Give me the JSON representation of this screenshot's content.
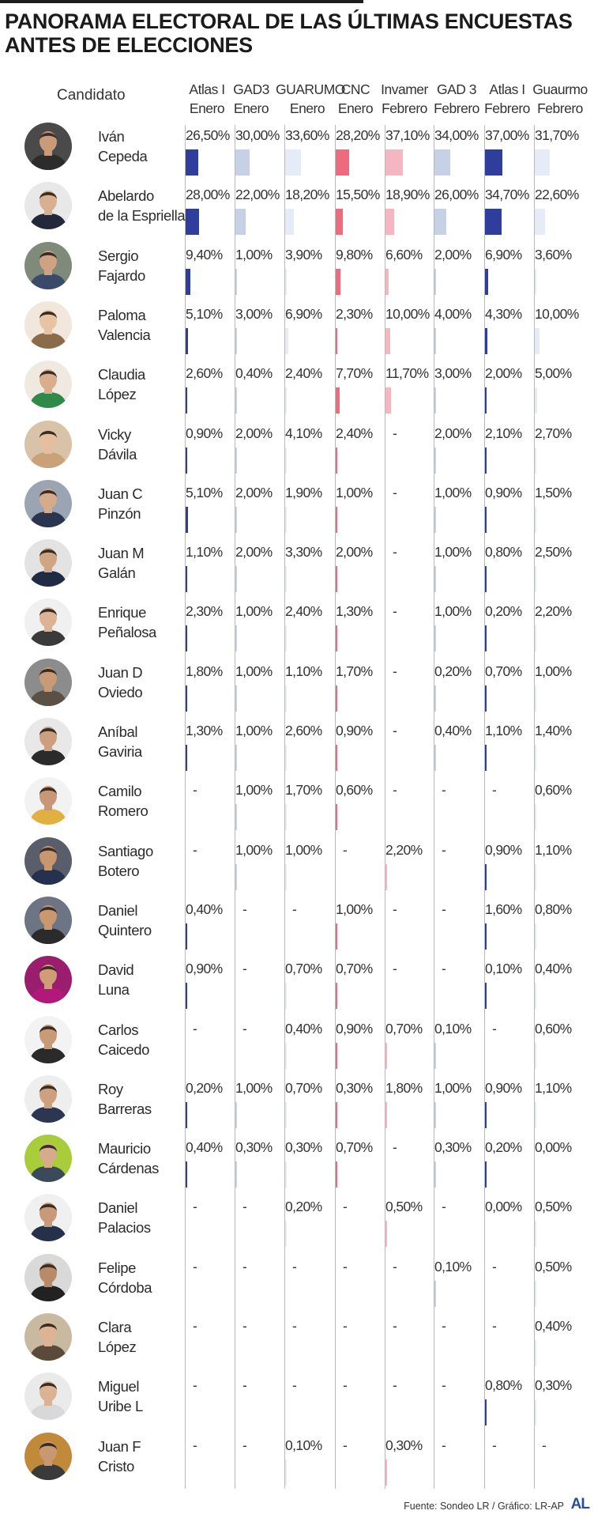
{
  "title_line1": "PANORAMA ELECTORAL DE LAS ÚLTIMAS ENCUESTAS",
  "title_line2": "ANTES DE ELECCIONES",
  "candidate_header": "Candidato",
  "source": "Fuente: Sondeo LR / Gráfico: LR-AP",
  "logo": "AL",
  "colors": {
    "blue_dark": "#2f3d9c",
    "blue_light": "#c7d1e6",
    "blue_pale": "#e6ecf7",
    "red_strong": "#ef6a7c",
    "red_light": "#f4b6c0",
    "grey_line": "#b9b9b9"
  },
  "columns": [
    {
      "pollster": "Atlas I",
      "month": "Enero",
      "color": "#2f3d9c"
    },
    {
      "pollster": "GAD3",
      "month": "Enero",
      "color": "#c7d1e6"
    },
    {
      "pollster": "GUARUMO",
      "month": "Enero",
      "color": "#e6ecf7"
    },
    {
      "pollster": "CNC",
      "month": "Enero",
      "color": "#ef6a7c"
    },
    {
      "pollster": "Invamer",
      "month": "Febrero",
      "color": "#f4b6c0"
    },
    {
      "pollster": "GAD 3",
      "month": "Febrero",
      "color": "#c7d1e6"
    },
    {
      "pollster": "Atlas I",
      "month": "Febrero",
      "color": "#2f3d9c"
    },
    {
      "pollster": "Guaurmo",
      "month": "Febrero",
      "color": "#e6ecf7"
    }
  ],
  "chart_data": {
    "type": "table",
    "columns": [
      "Atlas I Enero",
      "GAD3 Enero",
      "GUARUMO Enero",
      "CNC Enero",
      "Invamer Febrero",
      "GAD 3 Febrero",
      "Atlas I Febrero",
      "Guaurmo Febrero"
    ],
    "rows": [
      {
        "first": "Iván",
        "last": "Cepeda",
        "skin": "#c99b7a",
        "shirt": "#2c2c2c",
        "bg": "#4a4a4a",
        "labels": [
          "26,50%",
          "30,00%",
          "33,60%",
          "28,20%",
          "37,10%",
          "34,00%",
          "37,00%",
          "31,70%"
        ],
        "values": [
          26.5,
          30.0,
          33.6,
          28.2,
          37.1,
          34.0,
          37.0,
          31.7
        ]
      },
      {
        "first": "Abelardo",
        "last": "de la Espriella",
        "skin": "#d8b08e",
        "shirt": "#23283a",
        "bg": "#e8e8e8",
        "labels": [
          "28,00%",
          "22,00%",
          "18,20%",
          "15,50%",
          "18,90%",
          "26,00%",
          "34,70%",
          "22,60%"
        ],
        "values": [
          28.0,
          22.0,
          18.2,
          15.5,
          18.9,
          26.0,
          34.7,
          22.6
        ]
      },
      {
        "first": "Sergio",
        "last": "Fajardo",
        "skin": "#cfa283",
        "shirt": "#3b4a6b",
        "bg": "#7f8a7a",
        "labels": [
          "9,40%",
          "1,00%",
          "3,90%",
          "9,80%",
          "6,60%",
          "2,00%",
          "6,90%",
          "3,60%"
        ],
        "values": [
          9.4,
          1.0,
          3.9,
          9.8,
          6.6,
          2.0,
          6.9,
          3.6
        ]
      },
      {
        "first": "Paloma",
        "last": "Valencia",
        "skin": "#e7c3a3",
        "shirt": "#8a6b4a",
        "bg": "#f1e7dc",
        "labels": [
          "5,10%",
          "3,00%",
          "6,90%",
          "2,30%",
          "10,00%",
          "4,00%",
          "4,30%",
          "10,00%"
        ],
        "values": [
          5.1,
          3.0,
          6.9,
          2.3,
          10.0,
          4.0,
          4.3,
          10.0
        ]
      },
      {
        "first": "Claudia",
        "last": "López",
        "skin": "#d9ad8d",
        "shirt": "#2f8a4a",
        "bg": "#efe9e2",
        "labels": [
          "2,60%",
          "0,40%",
          "2,40%",
          "7,70%",
          "11,70%",
          "3,00%",
          "2,00%",
          "5,00%"
        ],
        "values": [
          2.6,
          0.4,
          2.4,
          7.7,
          11.7,
          3.0,
          2.0,
          5.0
        ]
      },
      {
        "first": "Vicky",
        "last": "Dávila",
        "skin": "#e4bf9f",
        "shirt": "#c9a27a",
        "bg": "#d8c2a8",
        "labels": [
          "0,90%",
          "2,00%",
          "4,10%",
          "2,40%",
          "-",
          "2,00%",
          "2,10%",
          "2,70%"
        ],
        "values": [
          0.9,
          2.0,
          4.1,
          2.4,
          null,
          2.0,
          2.1,
          2.7
        ]
      },
      {
        "first": "Juan C",
        "last": "Pinzón",
        "skin": "#d6ab8b",
        "shirt": "#2a3550",
        "bg": "#9aa4b2",
        "labels": [
          "5,10%",
          "2,00%",
          "1,90%",
          "1,00%",
          "-",
          "1,00%",
          "0,90%",
          "1,50%"
        ],
        "values": [
          5.1,
          2.0,
          1.9,
          1.0,
          null,
          1.0,
          0.9,
          1.5
        ]
      },
      {
        "first": "Juan M",
        "last": "Galán",
        "skin": "#d0a584",
        "shirt": "#1f2a44",
        "bg": "#e3e3e3",
        "labels": [
          "1,10%",
          "2,00%",
          "3,30%",
          "2,00%",
          "-",
          "1,00%",
          "0,80%",
          "2,50%"
        ],
        "values": [
          1.1,
          2.0,
          3.3,
          2.0,
          null,
          1.0,
          0.8,
          2.5
        ]
      },
      {
        "first": "Enrique",
        "last": "Peñalosa",
        "skin": "#dcb394",
        "shirt": "#3a3a3a",
        "bg": "#f0f0f0",
        "labels": [
          "2,30%",
          "1,00%",
          "2,40%",
          "1,30%",
          "-",
          "1,00%",
          "0,20%",
          "2,20%"
        ],
        "values": [
          2.3,
          1.0,
          2.4,
          1.3,
          null,
          1.0,
          0.2,
          2.2
        ]
      },
      {
        "first": "Juan D",
        "last": "Oviedo",
        "skin": "#c89a78",
        "shirt": "#5a5046",
        "bg": "#8c8c8c",
        "labels": [
          "1,80%",
          "1,00%",
          "1,10%",
          "1,70%",
          "-",
          "0,20%",
          "0,70%",
          "1,00%"
        ],
        "values": [
          1.8,
          1.0,
          1.1,
          1.7,
          null,
          0.2,
          0.7,
          1.0
        ]
      },
      {
        "first": "Aníbal",
        "last": "Gaviria",
        "skin": "#cc9f80",
        "shirt": "#2b2b2b",
        "bg": "#e8e8e8",
        "labels": [
          "1,30%",
          "1,00%",
          "2,60%",
          "0,90%",
          "-",
          "0,40%",
          "1,10%",
          "1,40%"
        ],
        "values": [
          1.3,
          1.0,
          2.6,
          0.9,
          null,
          0.4,
          1.1,
          1.4
        ]
      },
      {
        "first": "Camilo",
        "last": "Romero",
        "skin": "#c89876",
        "shirt": "#e0b040",
        "bg": "#f2f2f2",
        "labels": [
          "-",
          "1,00%",
          "1,70%",
          "0,60%",
          "-",
          "-",
          "-",
          "0,60%"
        ],
        "values": [
          null,
          1.0,
          1.7,
          0.6,
          null,
          null,
          null,
          0.6
        ]
      },
      {
        "first": "Santiago",
        "last": "Botero",
        "skin": "#c8966f",
        "shirt": "#26314f",
        "bg": "#5a5e6a",
        "labels": [
          "-",
          "1,00%",
          "1,00%",
          "-",
          "2,20%",
          "-",
          "0,90%",
          "1,10%"
        ],
        "values": [
          null,
          1.0,
          1.0,
          null,
          2.2,
          null,
          0.9,
          1.1
        ]
      },
      {
        "first": "Daniel",
        "last": "Quintero",
        "skin": "#c9986f",
        "shirt": "#2b2b2b",
        "bg": "#6d7584",
        "labels": [
          "0,40%",
          "-",
          "-",
          "1,00%",
          "-",
          "-",
          "1,60%",
          "0,80%"
        ],
        "values": [
          0.4,
          null,
          null,
          1.0,
          null,
          null,
          1.6,
          0.8
        ]
      },
      {
        "first": "David",
        "last": "Luna",
        "skin": "#cf9d78",
        "shirt": "#b0187a",
        "bg": "#9a1e6d",
        "labels": [
          "0,90%",
          "-",
          "0,70%",
          "0,70%",
          "-",
          "-",
          "0,10%",
          "0,40%"
        ],
        "values": [
          0.9,
          null,
          0.7,
          0.7,
          null,
          null,
          0.1,
          0.4
        ]
      },
      {
        "first": "Carlos",
        "last": "Caicedo",
        "skin": "#c89a78",
        "shirt": "#2a2a2a",
        "bg": "#f3f3f3",
        "labels": [
          "-",
          "-",
          "0,40%",
          "0,90%",
          "0,70%",
          "0,10%",
          "-",
          "0,60%"
        ],
        "values": [
          null,
          null,
          0.4,
          0.9,
          0.7,
          0.1,
          null,
          0.6
        ]
      },
      {
        "first": "Roy",
        "last": "Barreras",
        "skin": "#cfa07e",
        "shirt": "#2c3650",
        "bg": "#eeeeee",
        "labels": [
          "0,20%",
          "1,00%",
          "0,70%",
          "0,30%",
          "1,80%",
          "1,00%",
          "0,90%",
          "1,10%"
        ],
        "values": [
          0.2,
          1.0,
          0.7,
          0.3,
          1.8,
          1.0,
          0.9,
          1.1
        ]
      },
      {
        "first": "Mauricio",
        "last": "Cárdenas",
        "skin": "#d6ab8b",
        "shirt": "#3a4a5a",
        "bg": "#a8cc3a",
        "labels": [
          "0,40%",
          "0,30%",
          "0,30%",
          "0,70%",
          "-",
          "0,30%",
          "0,20%",
          "0,00%"
        ],
        "values": [
          0.4,
          0.3,
          0.3,
          0.7,
          null,
          0.3,
          0.2,
          0.0
        ]
      },
      {
        "first": "Daniel",
        "last": "Palacios",
        "skin": "#c99a79",
        "shirt": "#25304a",
        "bg": "#f0f0f0",
        "labels": [
          "-",
          "-",
          "0,20%",
          "-",
          "0,50%",
          "-",
          "0,00%",
          "0,50%"
        ],
        "values": [
          null,
          null,
          0.2,
          null,
          0.5,
          null,
          0.0,
          0.5
        ]
      },
      {
        "first": "Felipe",
        "last": "Córdoba",
        "skin": "#b88a68",
        "shirt": "#222222",
        "bg": "#d9d9d9",
        "labels": [
          "-",
          "-",
          "-",
          "-",
          "-",
          "0,10%",
          "-",
          "0,50%"
        ],
        "values": [
          null,
          null,
          null,
          null,
          null,
          0.1,
          null,
          0.5
        ]
      },
      {
        "first": "Clara",
        "last": "López",
        "skin": "#dcb493",
        "shirt": "#5b4a3a",
        "bg": "#c9b9a0",
        "labels": [
          "-",
          "-",
          "-",
          "-",
          "-",
          "-",
          "-",
          "0,40%"
        ],
        "values": [
          null,
          null,
          null,
          null,
          null,
          null,
          null,
          0.4
        ]
      },
      {
        "first": "Miguel",
        "last": "Uribe L",
        "skin": "#dbb393",
        "shirt": "#d8d8d8",
        "bg": "#eaeaea",
        "labels": [
          "-",
          "-",
          "-",
          "-",
          "-",
          "-",
          "0,80%",
          "0,30%"
        ],
        "values": [
          null,
          null,
          null,
          null,
          null,
          null,
          0.8,
          0.3
        ]
      },
      {
        "first": "Juan F",
        "last": "Cristo",
        "skin": "#c99872",
        "shirt": "#3a3a3a",
        "bg": "#c08a3a",
        "labels": [
          "-",
          "-",
          "0,10%",
          "-",
          "0,30%",
          "-",
          "-",
          "-"
        ],
        "values": [
          null,
          null,
          0.1,
          null,
          0.3,
          null,
          null,
          null
        ]
      }
    ]
  }
}
